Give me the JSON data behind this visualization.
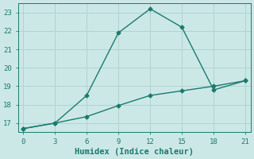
{
  "line1_x": [
    0,
    3,
    6,
    9,
    12,
    15,
    18,
    21
  ],
  "line1_y": [
    16.7,
    17.0,
    18.5,
    21.9,
    23.2,
    22.2,
    18.8,
    19.3
  ],
  "line2_x": [
    0,
    3,
    6,
    9,
    12,
    15,
    18,
    21
  ],
  "line2_y": [
    16.7,
    17.0,
    17.35,
    17.95,
    18.5,
    18.75,
    19.0,
    19.3
  ],
  "line_color": "#1a7a6e",
  "bg_color": "#cce8e6",
  "grid_color": "#aed4d1",
  "xlabel": "Humidex (Indice chaleur)",
  "xlim": [
    -0.5,
    21.5
  ],
  "ylim": [
    16.5,
    23.5
  ],
  "xticks": [
    0,
    3,
    6,
    9,
    12,
    15,
    18,
    21
  ],
  "yticks": [
    17,
    18,
    19,
    20,
    21,
    22,
    23
  ],
  "xlabel_fontsize": 7.5,
  "tick_fontsize": 6.5,
  "line_width": 1.0,
  "marker": "D",
  "marker_size": 2.5
}
